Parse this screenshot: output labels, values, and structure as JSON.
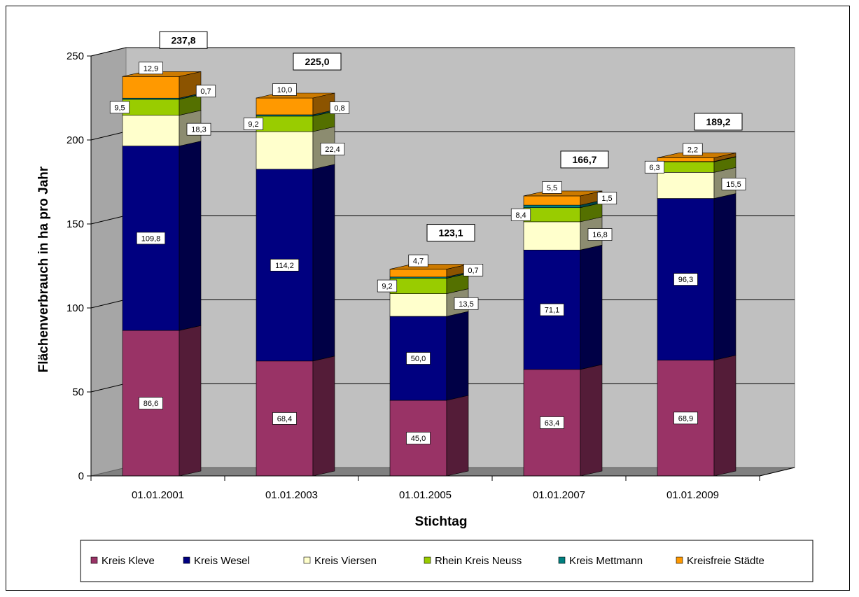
{
  "chart_data": {
    "type": "bar",
    "stacked": true,
    "three_d": true,
    "categories": [
      "01.01.2001",
      "01.01.2003",
      "01.01.2005",
      "01.01.2007",
      "01.01.2009"
    ],
    "series": [
      {
        "name": "Kreis Kleve",
        "color": "#993366",
        "values": [
          86.6,
          68.4,
          45.0,
          63.4,
          68.9
        ],
        "labels": [
          "86,6",
          "68,4",
          "45,0",
          "63,4",
          "68,9"
        ]
      },
      {
        "name": "Kreis Wesel",
        "color": "#000080",
        "values": [
          109.8,
          114.2,
          50.0,
          71.1,
          96.3
        ],
        "labels": [
          "109,8",
          "114,2",
          "50,0",
          "71,1",
          "96,3"
        ]
      },
      {
        "name": "Kreis Viersen",
        "color": "#FFFFCC",
        "values": [
          18.3,
          22.4,
          13.5,
          16.8,
          15.5
        ],
        "labels": [
          "18,3",
          "22,4",
          "13,5",
          "16,8",
          "15,5"
        ]
      },
      {
        "name": "Rhein Kreis Neuss",
        "color": "#99CC00",
        "values": [
          9.5,
          9.2,
          9.2,
          8.4,
          6.3
        ],
        "labels": [
          "9,5",
          "9,2",
          "9,2",
          "8,4",
          "6,3"
        ]
      },
      {
        "name": "Kreis Mettmann",
        "color": "#008080",
        "values": [
          0.7,
          0.8,
          0.7,
          1.5,
          0.2
        ],
        "labels": [
          "0,7",
          "0,8",
          "0,7",
          "1,5",
          ""
        ]
      },
      {
        "name": "Kreisfreie Städte",
        "color": "#FF9900",
        "values": [
          12.9,
          10.0,
          4.7,
          5.5,
          2.2
        ],
        "labels": [
          "12,9",
          "10,0",
          "4,7",
          "5,5",
          "2,2"
        ]
      }
    ],
    "totals": [
      "237,8",
      "225,0",
      "123,1",
      "166,7",
      "189,2"
    ],
    "total_values": [
      237.8,
      225.0,
      123.1,
      166.7,
      189.2
    ],
    "xlabel": "Stichtag",
    "ylabel": "Flächenverbrauch in ha pro Jahr",
    "ylim": [
      0,
      250
    ],
    "yticks": [
      0,
      50,
      100,
      150,
      200,
      250
    ],
    "grid": true,
    "legend_position": "bottom",
    "wall_color": "#C0C0C0",
    "floor_color": "#808080"
  }
}
